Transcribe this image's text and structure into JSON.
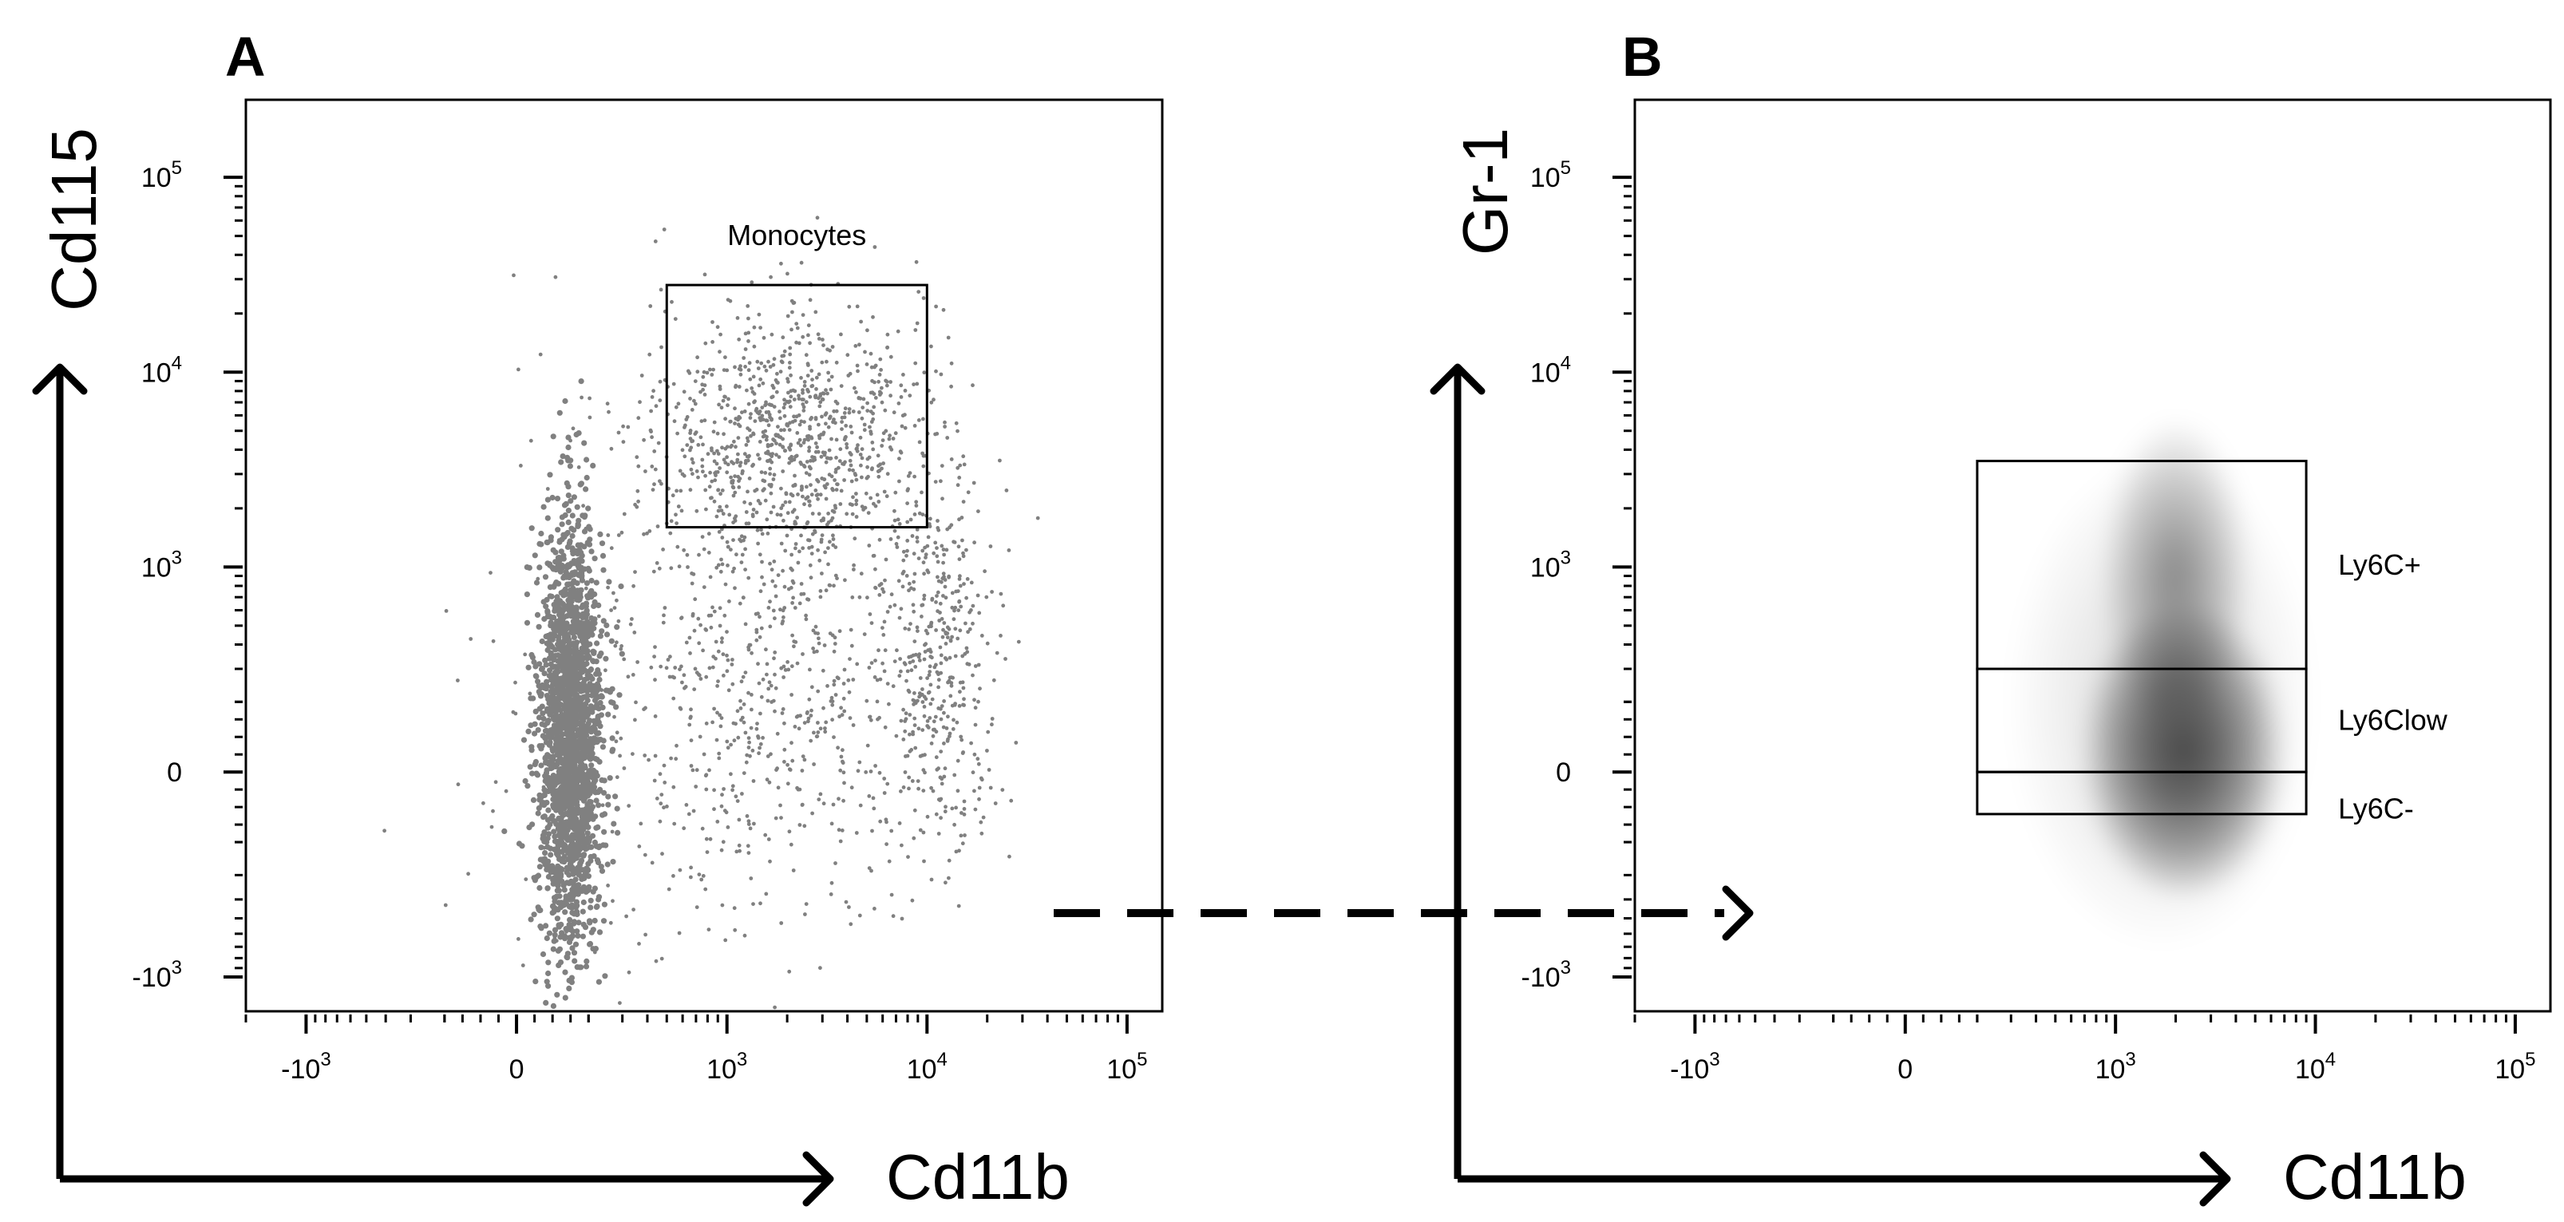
{
  "figure": {
    "colors": {
      "axis": "#000000",
      "dots": "#808080",
      "density": "#000000",
      "gate": "#000000",
      "background": "#ffffff"
    },
    "connector": {
      "style": "dashed-arrow"
    }
  },
  "chart_data": [
    {
      "type": "scatter",
      "panel_label": "A",
      "title": "",
      "xlabel": "Cd11b",
      "ylabel": "Cd115",
      "x_scale": "biexponential",
      "y_scale": "biexponential",
      "xlim": [
        -2000,
        150000
      ],
      "ylim": [
        -1500,
        250000
      ],
      "x_ticks": [
        {
          "value": -1000,
          "label_base": "-10",
          "label_exp": "3"
        },
        {
          "value": 0,
          "label_base": "0",
          "label_exp": ""
        },
        {
          "value": 1000,
          "label_base": "10",
          "label_exp": "3"
        },
        {
          "value": 10000,
          "label_base": "10",
          "label_exp": "4"
        },
        {
          "value": 100000,
          "label_base": "10",
          "label_exp": "5"
        }
      ],
      "y_ticks": [
        {
          "value": -1000,
          "label_base": "-10",
          "label_exp": "3"
        },
        {
          "value": 0,
          "label_base": "0",
          "label_exp": ""
        },
        {
          "value": 1000,
          "label_base": "10",
          "label_exp": "3"
        },
        {
          "value": 10000,
          "label_base": "10",
          "label_exp": "4"
        },
        {
          "value": 100000,
          "label_base": "10",
          "label_exp": "5"
        }
      ],
      "populations": [
        {
          "x_center": 150,
          "y_center": 100,
          "x_spread": 0.08,
          "y_spread": 0.55,
          "count": 2200,
          "density": "dense"
        },
        {
          "x_center": 2100,
          "y_center": 4800,
          "x_spread": 0.33,
          "y_spread": 0.32,
          "count": 900,
          "density": "sparse"
        },
        {
          "x_center": 1900,
          "y_center": 300,
          "x_spread": 0.35,
          "y_spread": 0.5,
          "count": 500,
          "density": "sparse"
        },
        {
          "x_center": 11500,
          "y_center": 360,
          "x_spread": 0.15,
          "y_spread": 0.5,
          "count": 450,
          "density": "sparse"
        },
        {
          "x_center": 500,
          "y_center": 250,
          "x_spread": 0.5,
          "y_spread": 0.9,
          "count": 300,
          "density": "sparse"
        }
      ],
      "gates": [
        {
          "name": "Monocytes",
          "x_range": [
            500,
            10000
          ],
          "y_range": [
            1600,
            28000
          ]
        }
      ]
    },
    {
      "type": "heatmap",
      "panel_label": "B",
      "title": "",
      "xlabel": "Cd11b",
      "ylabel": "Gr-1",
      "x_scale": "biexponential",
      "y_scale": "biexponential",
      "xlim": [
        -2000,
        150000
      ],
      "ylim": [
        -1500,
        250000
      ],
      "x_ticks": [
        {
          "value": -1000,
          "label_base": "-10",
          "label_exp": "3"
        },
        {
          "value": 0,
          "label_base": "0",
          "label_exp": ""
        },
        {
          "value": 1000,
          "label_base": "10",
          "label_exp": "3"
        },
        {
          "value": 10000,
          "label_base": "10",
          "label_exp": "4"
        },
        {
          "value": 100000,
          "label_base": "10",
          "label_exp": "5"
        }
      ],
      "y_ticks": [
        {
          "value": -1000,
          "label_base": "-10",
          "label_exp": "3"
        },
        {
          "value": 0,
          "label_base": "0",
          "label_exp": ""
        },
        {
          "value": 1000,
          "label_base": "10",
          "label_exp": "3"
        },
        {
          "value": 10000,
          "label_base": "10",
          "label_exp": "4"
        },
        {
          "value": 100000,
          "label_base": "10",
          "label_exp": "5"
        }
      ],
      "density_blobs": [
        {
          "x_center": 2200,
          "y_center": 60,
          "x_spread": 0.22,
          "y_spread": 0.33,
          "weight": 1.0
        },
        {
          "x_center": 2000,
          "y_center": 900,
          "x_spread": 0.16,
          "y_spread": 0.35,
          "weight": 0.45
        },
        {
          "x_center": 1700,
          "y_center": 200,
          "x_spread": 0.33,
          "y_spread": 0.55,
          "weight": 0.18
        }
      ],
      "gates": [
        {
          "name": "Ly6C+",
          "x_range": [
            200,
            9000
          ],
          "y_range": [
            300,
            3500
          ]
        },
        {
          "name": "Ly6Clow",
          "x_range": [
            200,
            9000
          ],
          "y_range": [
            0,
            300
          ]
        },
        {
          "name": "Ly6C-",
          "x_range": [
            200,
            9000
          ],
          "y_range": [
            -120,
            0
          ]
        }
      ]
    }
  ]
}
